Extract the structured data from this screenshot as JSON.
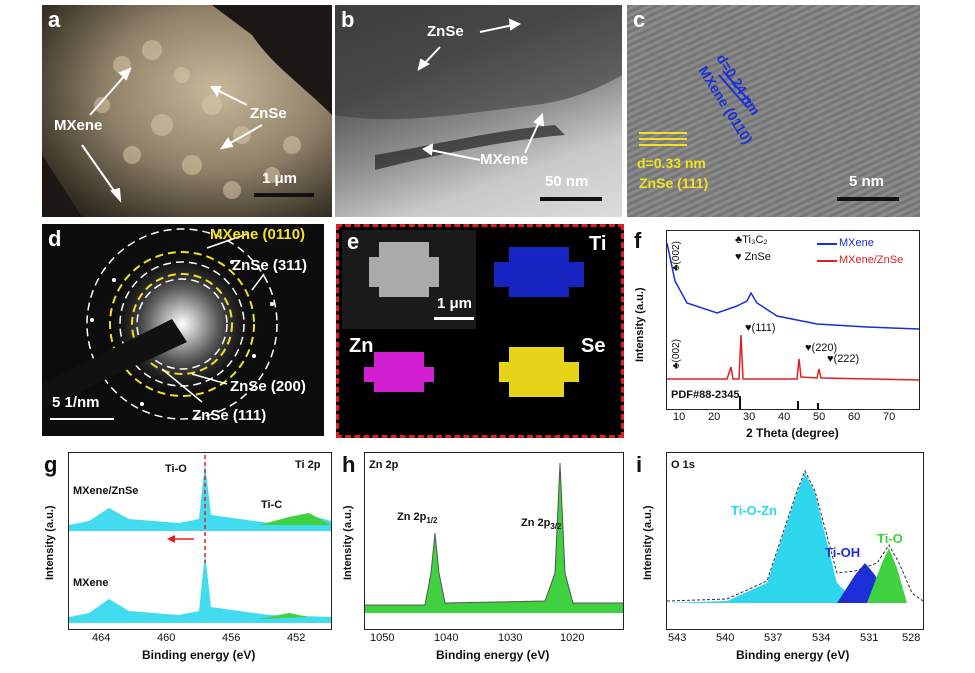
{
  "panels": {
    "a": {
      "label": "a",
      "ann_mxene": "MXene",
      "ann_znse": "ZnSe",
      "scale": "1 μm"
    },
    "b": {
      "label": "b",
      "ann_znse": "ZnSe",
      "ann_mxene": "MXene",
      "scale": "50 nm"
    },
    "c": {
      "label": "c",
      "d1": "d=0.24 nm",
      "p1": "MXene (0110)",
      "d2": "d=0.33 nm",
      "p2": "ZnSe (111)",
      "scale": "5 nm"
    },
    "d": {
      "label": "d",
      "r1": "MXene (0110)",
      "r2": "ZnSe (311)",
      "r3": "ZnSe (200)",
      "r4": "ZnSe (111)",
      "scale": "5 1/nm"
    },
    "e": {
      "label": "e",
      "scale": "1 μm",
      "ti": "Ti",
      "zn": "Zn",
      "se": "Se"
    },
    "f": {
      "label": "f",
      "legend_a": "MXene",
      "legend_b": "MXene/ZnSe",
      "key1": "♣Ti₃C₂",
      "key2": "♥ ZnSe",
      "peak1": "♣(002)",
      "peak2": "♣(002)",
      "p111": "♥(111)",
      "p220": "♥(220)",
      "p222": "♥(222)",
      "pdf": "PDF#88-2345",
      "ylabel": "Intensity (a.u.)",
      "xlabel": "2 Theta (degree)",
      "xticks": [
        "10",
        "20",
        "30",
        "40",
        "50",
        "60",
        "70"
      ]
    },
    "g": {
      "label": "g",
      "title": "Ti 2p",
      "s1": "MXene/ZnSe",
      "s2": "MXene",
      "tio": "Ti-O",
      "tic": "Ti-C",
      "ylabel": "Intensity (a.u.)",
      "xlabel": "Binding energy (eV)",
      "xticks": [
        "464",
        "460",
        "456",
        "452"
      ]
    },
    "h": {
      "label": "h",
      "title": "Zn 2p",
      "p12": "Zn 2p",
      "p12sub": "1/2",
      "p32": "Zn 2p",
      "p32sub": "3/2",
      "ylabel": "Intensity (a.u.)",
      "xlabel": "Binding energy (eV)",
      "xticks": [
        "1050",
        "1040",
        "1030",
        "1020"
      ]
    },
    "i": {
      "label": "i",
      "title": "O 1s",
      "tiozn": "Ti-O-Zn",
      "tioh": "Ti-OH",
      "tio": "Ti-O",
      "ylabel": "Intensity (a.u.)",
      "xlabel": "Binding energy (eV)",
      "xticks": [
        "543",
        "540",
        "537",
        "534",
        "531",
        "528"
      ]
    }
  },
  "colors": {
    "blue": "#1a2fd6",
    "red": "#e02020",
    "cyan": "#2fd7ee",
    "green": "#3fd13f",
    "yellow": "#f2e021",
    "navy": "#2020d0",
    "dashred": "#e02020"
  }
}
